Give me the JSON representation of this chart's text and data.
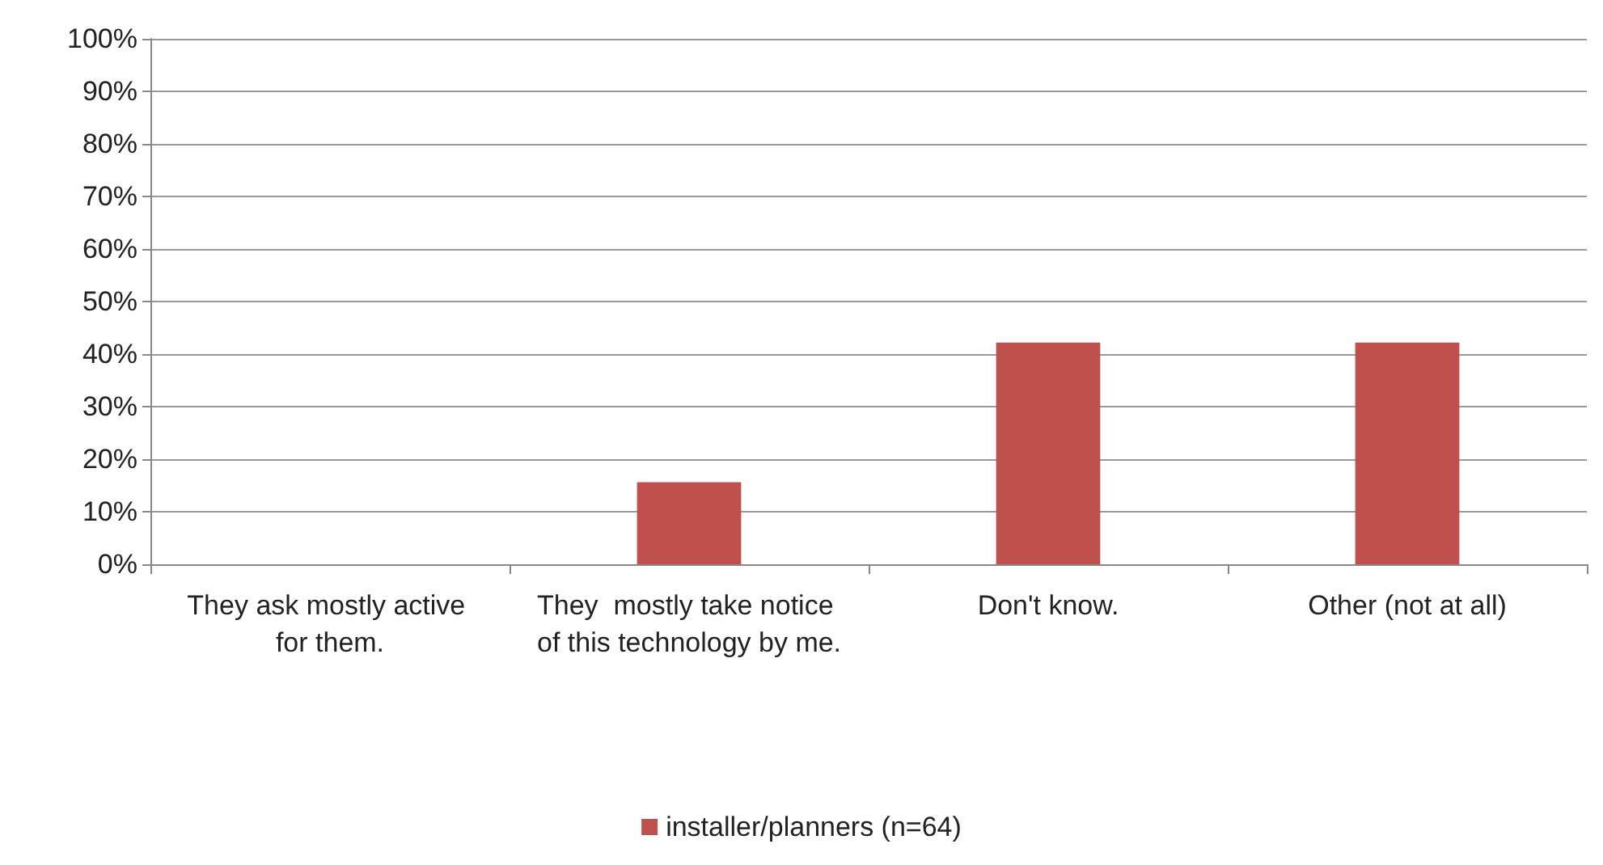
{
  "chart_data": {
    "type": "bar",
    "categories": [
      "They ask mostly active for them.",
      "They  mostly take notice of this technology by me.",
      "Don't know.",
      "Other (not at all)"
    ],
    "series": [
      {
        "name": "installer/planners (n=64)",
        "color": "#c0504d",
        "values": [
          0,
          15.6,
          42.2,
          42.2
        ]
      }
    ],
    "ylim": [
      0,
      100
    ],
    "yticks": [
      {
        "value": 0,
        "label": "0%"
      },
      {
        "value": 10,
        "label": "10%"
      },
      {
        "value": 20,
        "label": "20%"
      },
      {
        "value": 30,
        "label": "30%"
      },
      {
        "value": 40,
        "label": "40%"
      },
      {
        "value": 50,
        "label": "50%"
      },
      {
        "value": 60,
        "label": "60%"
      },
      {
        "value": 70,
        "label": "70%"
      },
      {
        "value": 80,
        "label": "80%"
      },
      {
        "value": 90,
        "label": "90%"
      },
      {
        "value": 100,
        "label": "100%"
      }
    ],
    "grid": "y",
    "legend": "bottom"
  }
}
